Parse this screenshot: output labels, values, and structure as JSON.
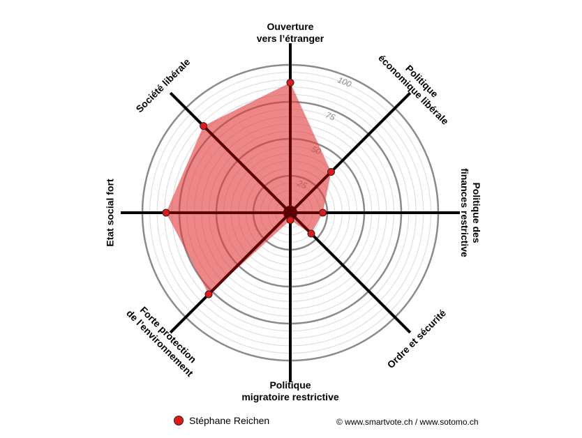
{
  "chart_data": {
    "type": "radar",
    "rmax": 100,
    "ticks": [
      25,
      50,
      75,
      100
    ],
    "axes": [
      {
        "lines": [
          "Ouverture",
          "vers l’étranger"
        ]
      },
      {
        "lines": [
          "Politique",
          "économique libérale"
        ]
      },
      {
        "lines": [
          "Politique des",
          "finances restrictive"
        ]
      },
      {
        "lines": [
          "Ordre et sécurité"
        ]
      },
      {
        "lines": [
          "Politique",
          "migratoire restrictive"
        ]
      },
      {
        "lines": [
          "Forte protection",
          "de l’environnement"
        ]
      },
      {
        "lines": [
          "Etat social fort"
        ]
      },
      {
        "lines": [
          "Société libérale"
        ]
      }
    ],
    "series": [
      {
        "name": "Stéphane Reichen",
        "values": [
          88,
          39,
          22,
          20,
          5,
          78,
          84,
          83
        ],
        "fill": "#e23b3b",
        "marker": "#e31818"
      }
    ]
  },
  "legend": {
    "label": "Stéphane Reichen"
  },
  "footer": {
    "copyright": "© www.smartvote.ch / www.sotomo.ch"
  }
}
